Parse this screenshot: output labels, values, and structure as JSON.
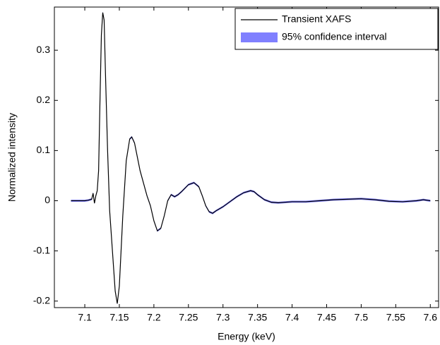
{
  "chart_data": {
    "type": "line",
    "x_label": "Energy (keV)",
    "y_label": "Normalized intensity",
    "x": [
      7.08,
      7.09,
      7.1,
      7.105,
      7.11,
      7.112,
      7.114,
      7.116,
      7.118,
      7.12,
      7.122,
      7.124,
      7.126,
      7.128,
      7.13,
      7.133,
      7.136,
      7.14,
      7.144,
      7.147,
      7.15,
      7.155,
      7.16,
      7.165,
      7.168,
      7.172,
      7.18,
      7.19,
      7.195,
      7.2,
      7.205,
      7.21,
      7.215,
      7.22,
      7.225,
      7.23,
      7.235,
      7.24,
      7.25,
      7.258,
      7.265,
      7.27,
      7.275,
      7.28,
      7.285,
      7.29,
      7.3,
      7.31,
      7.32,
      7.33,
      7.34,
      7.345,
      7.35,
      7.36,
      7.37,
      7.38,
      7.4,
      7.42,
      7.44,
      7.46,
      7.48,
      7.5,
      7.52,
      7.54,
      7.56,
      7.58,
      7.59,
      7.6
    ],
    "series": [
      {
        "name": "Transient XAFS",
        "color": "#000000",
        "values": [
          0,
          0,
          0,
          0.001,
          0.003,
          0.015,
          -0.005,
          0.01,
          0.02,
          0.06,
          0.2,
          0.33,
          0.375,
          0.36,
          0.25,
          0.1,
          -0.02,
          -0.1,
          -0.18,
          -0.205,
          -0.17,
          -0.03,
          0.08,
          0.123,
          0.127,
          0.115,
          0.06,
          0.01,
          -0.01,
          -0.04,
          -0.06,
          -0.055,
          -0.03,
          0,
          0.012,
          0.008,
          0.012,
          0.018,
          0.032,
          0.036,
          0.028,
          0.01,
          -0.01,
          -0.022,
          -0.025,
          -0.02,
          -0.012,
          -0.002,
          0.008,
          0.016,
          0.02,
          0.018,
          0.012,
          0.002,
          -0.003,
          -0.004,
          -0.002,
          -0.002,
          0,
          0.002,
          0.003,
          0.004,
          0.002,
          -0.001,
          -0.002,
          0,
          0.002,
          0
        ]
      },
      {
        "name": "95% confidence interval",
        "color": "#8080ff",
        "lower": [
          -0.002,
          -0.002,
          -0.002,
          -0.001,
          0.001,
          0.013,
          -0.007,
          0.008,
          0.018,
          0.058,
          0.198,
          0.328,
          0.373,
          0.358,
          0.248,
          0.098,
          -0.022,
          -0.102,
          -0.182,
          -0.207,
          -0.172,
          -0.032,
          0.078,
          0.121,
          0.125,
          0.113,
          0.058,
          0.008,
          -0.012,
          -0.042,
          -0.062,
          -0.057,
          -0.032,
          -0.002,
          0.01,
          0.006,
          0.01,
          0.016,
          0.03,
          0.034,
          0.026,
          0.008,
          -0.012,
          -0.024,
          -0.027,
          -0.022,
          -0.014,
          -0.004,
          0.006,
          0.014,
          0.018,
          0.016,
          0.01,
          0,
          -0.005,
          -0.006,
          -0.004,
          -0.004,
          -0.002,
          0,
          0.001,
          0.002,
          0,
          -0.003,
          -0.004,
          -0.002,
          0,
          -0.002
        ],
        "upper": [
          0.002,
          0.002,
          0.002,
          0.003,
          0.005,
          0.017,
          -0.003,
          0.012,
          0.022,
          0.062,
          0.202,
          0.332,
          0.377,
          0.362,
          0.252,
          0.102,
          -0.018,
          -0.098,
          -0.178,
          -0.203,
          -0.168,
          -0.028,
          0.082,
          0.125,
          0.129,
          0.117,
          0.062,
          0.012,
          -0.008,
          -0.038,
          -0.058,
          -0.053,
          -0.028,
          0.002,
          0.014,
          0.01,
          0.014,
          0.02,
          0.034,
          0.038,
          0.03,
          0.012,
          -0.008,
          -0.02,
          -0.023,
          -0.018,
          -0.01,
          0,
          0.01,
          0.018,
          0.022,
          0.02,
          0.014,
          0.004,
          -0.001,
          -0.002,
          0,
          0,
          0.002,
          0.004,
          0.005,
          0.006,
          0.004,
          0.001,
          0,
          0.002,
          0.004,
          0.002
        ]
      }
    ],
    "xlim": [
      7.056,
      7.612
    ],
    "ylim": [
      -0.213,
      0.386
    ],
    "xticks": [
      7.1,
      7.15,
      7.2,
      7.25,
      7.3,
      7.35,
      7.4,
      7.45,
      7.5,
      7.55,
      7.6
    ],
    "yticks": [
      -0.2,
      -0.1,
      0,
      0.1,
      0.2,
      0.3
    ],
    "legend": "upper-right"
  }
}
